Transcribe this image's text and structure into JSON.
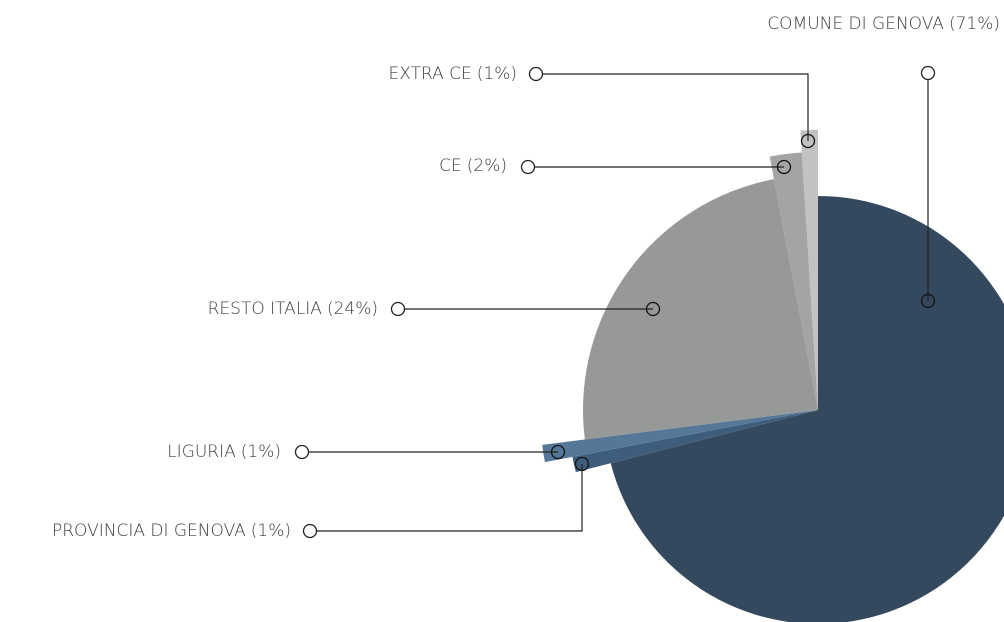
{
  "chart_data": {
    "type": "pie",
    "categories": [
      "COMUNE DI GENOVA",
      "PROVINCIA DI GENOVA",
      "LIGURIA",
      "RESTO ITALIA",
      "CE",
      "EXTRA CE"
    ],
    "values": [
      71,
      1,
      1,
      24,
      2,
      1
    ],
    "value_labels": [
      "(71%)",
      "(1%)",
      "(1%)",
      "(24%)",
      "(2%)",
      "(1%)"
    ],
    "colors": [
      "#34495e",
      "#3e5d7d",
      "#567898",
      "#979898",
      "#a4a4a4",
      "#c2c2c2"
    ]
  }
}
